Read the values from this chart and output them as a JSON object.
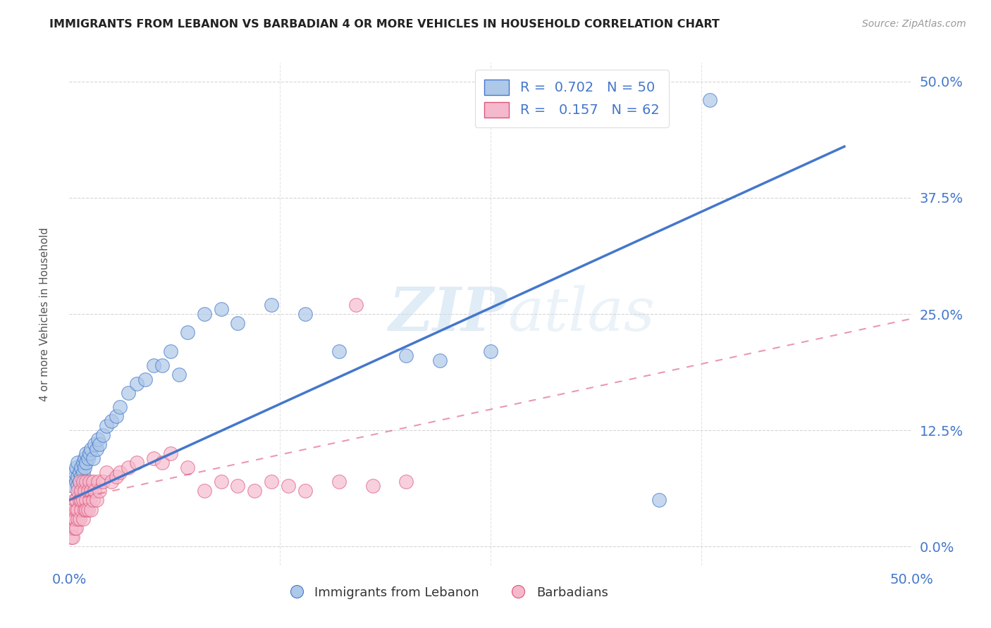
{
  "title": "IMMIGRANTS FROM LEBANON VS BARBADIAN 4 OR MORE VEHICLES IN HOUSEHOLD CORRELATION CHART",
  "source": "Source: ZipAtlas.com",
  "ylabel": "4 or more Vehicles in Household",
  "xlim": [
    0.0,
    0.5
  ],
  "ylim": [
    -0.02,
    0.52
  ],
  "xtick_labels": [
    "0.0%",
    "",
    "",
    "",
    "50.0%"
  ],
  "ytick_labels": [
    "0.0%",
    "12.5%",
    "25.0%",
    "37.5%",
    "50.0%"
  ],
  "xtick_vals": [
    0.0,
    0.125,
    0.25,
    0.375,
    0.5
  ],
  "ytick_vals": [
    0.0,
    0.125,
    0.25,
    0.375,
    0.5
  ],
  "legend_blue_label": "R =  0.702   N = 50",
  "legend_pink_label": "R =   0.157   N = 62",
  "legend_bottom_blue": "Immigrants from Lebanon",
  "legend_bottom_pink": "Barbadians",
  "blue_color": "#adc8e8",
  "pink_color": "#f5b8cc",
  "blue_line_color": "#4477cc",
  "pink_line_color": "#dd5577",
  "watermark_zip": "ZIP",
  "watermark_atlas": "atlas",
  "blue_scatter_x": [
    0.002,
    0.003,
    0.003,
    0.004,
    0.004,
    0.005,
    0.005,
    0.005,
    0.006,
    0.006,
    0.007,
    0.007,
    0.008,
    0.008,
    0.009,
    0.009,
    0.01,
    0.01,
    0.011,
    0.012,
    0.013,
    0.014,
    0.015,
    0.016,
    0.017,
    0.018,
    0.02,
    0.022,
    0.025,
    0.028,
    0.03,
    0.035,
    0.04,
    0.045,
    0.05,
    0.055,
    0.06,
    0.065,
    0.07,
    0.08,
    0.09,
    0.1,
    0.12,
    0.14,
    0.16,
    0.2,
    0.22,
    0.25,
    0.35,
    0.38
  ],
  "blue_scatter_y": [
    0.065,
    0.075,
    0.08,
    0.07,
    0.085,
    0.065,
    0.075,
    0.09,
    0.07,
    0.08,
    0.075,
    0.085,
    0.08,
    0.09,
    0.095,
    0.085,
    0.09,
    0.1,
    0.095,
    0.1,
    0.105,
    0.095,
    0.11,
    0.105,
    0.115,
    0.11,
    0.12,
    0.13,
    0.135,
    0.14,
    0.15,
    0.165,
    0.175,
    0.18,
    0.195,
    0.195,
    0.21,
    0.185,
    0.23,
    0.25,
    0.255,
    0.24,
    0.26,
    0.25,
    0.21,
    0.205,
    0.2,
    0.21,
    0.05,
    0.48
  ],
  "pink_scatter_x": [
    0.001,
    0.001,
    0.002,
    0.002,
    0.002,
    0.003,
    0.003,
    0.003,
    0.004,
    0.004,
    0.004,
    0.005,
    0.005,
    0.005,
    0.006,
    0.006,
    0.006,
    0.007,
    0.007,
    0.007,
    0.008,
    0.008,
    0.008,
    0.009,
    0.009,
    0.01,
    0.01,
    0.01,
    0.011,
    0.011,
    0.012,
    0.012,
    0.013,
    0.013,
    0.014,
    0.014,
    0.015,
    0.016,
    0.017,
    0.018,
    0.02,
    0.022,
    0.025,
    0.028,
    0.03,
    0.035,
    0.04,
    0.05,
    0.055,
    0.06,
    0.07,
    0.08,
    0.09,
    0.1,
    0.11,
    0.12,
    0.13,
    0.14,
    0.16,
    0.17,
    0.18,
    0.2
  ],
  "pink_scatter_y": [
    0.01,
    0.02,
    0.01,
    0.03,
    0.04,
    0.02,
    0.03,
    0.05,
    0.04,
    0.02,
    0.05,
    0.03,
    0.04,
    0.06,
    0.03,
    0.05,
    0.07,
    0.04,
    0.05,
    0.06,
    0.03,
    0.05,
    0.07,
    0.04,
    0.06,
    0.05,
    0.04,
    0.07,
    0.06,
    0.04,
    0.05,
    0.07,
    0.04,
    0.06,
    0.05,
    0.07,
    0.06,
    0.05,
    0.07,
    0.06,
    0.07,
    0.08,
    0.07,
    0.075,
    0.08,
    0.085,
    0.09,
    0.095,
    0.09,
    0.1,
    0.085,
    0.06,
    0.07,
    0.065,
    0.06,
    0.07,
    0.065,
    0.06,
    0.07,
    0.26,
    0.065,
    0.07
  ],
  "blue_line_x": [
    0.0,
    0.46
  ],
  "blue_line_y": [
    0.05,
    0.43
  ],
  "pink_line_x": [
    0.0,
    0.5
  ],
  "pink_line_y": [
    0.05,
    0.245
  ],
  "bg_color": "#ffffff",
  "grid_color": "#cccccc",
  "title_color": "#222222",
  "axis_tick_color": "#4477cc"
}
